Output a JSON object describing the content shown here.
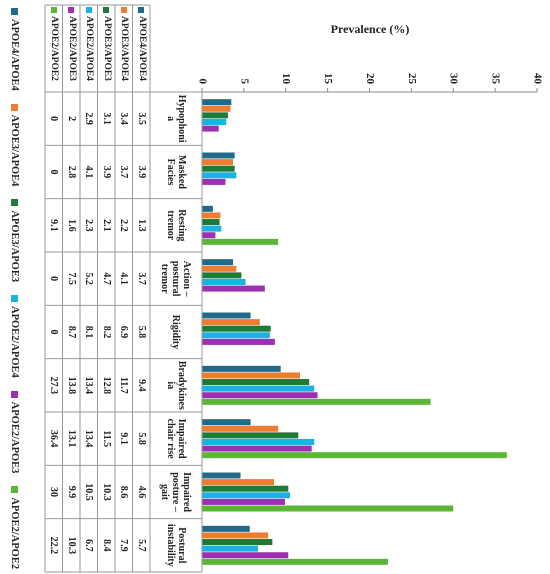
{
  "chart_data": {
    "type": "bar",
    "title": "Prevalence (%)",
    "categories": [
      "Hypophonia",
      "Masked Facies",
      "Resting tremor",
      "Action – postural tremor",
      "Rigidity",
      "Bradykinesia",
      "Impaired chair rise",
      "Impaired posture – gait",
      "Postural instability"
    ],
    "series": [
      {
        "name": "APOE4/APOE4",
        "color": "#1f6a8a",
        "values": [
          3.5,
          3.9,
          1.3,
          3.7,
          5.8,
          9.4,
          5.8,
          4.6,
          5.7
        ]
      },
      {
        "name": "APOE3/APOE4",
        "color": "#ed7d31",
        "values": [
          3.4,
          3.7,
          2.2,
          4.1,
          6.9,
          11.7,
          9.1,
          8.6,
          7.9
        ]
      },
      {
        "name": "APOE3/APOE3",
        "color": "#1e7a34",
        "values": [
          3.1,
          3.9,
          2.1,
          4.7,
          8.2,
          12.8,
          11.5,
          10.3,
          8.4
        ]
      },
      {
        "name": "APOE2/APOE4",
        "color": "#19b2e2",
        "values": [
          2.9,
          4.1,
          2.3,
          5.2,
          8.1,
          13.4,
          13.4,
          10.5,
          6.7
        ]
      },
      {
        "name": "APOE2/APOE3",
        "color": "#9b30b3",
        "values": [
          2,
          2.8,
          1.6,
          7.5,
          8.7,
          13.8,
          13.1,
          9.9,
          10.3
        ]
      },
      {
        "name": "APOE2/APOE2",
        "color": "#5db535",
        "values": [
          0,
          0,
          9.1,
          0,
          0,
          27.3,
          36.4,
          30,
          22.2
        ]
      }
    ],
    "ylim": [
      0,
      40
    ],
    "yticks": [
      0,
      5,
      10,
      15,
      20,
      25,
      30,
      35,
      40
    ],
    "grid": false,
    "legend": "bottom"
  }
}
